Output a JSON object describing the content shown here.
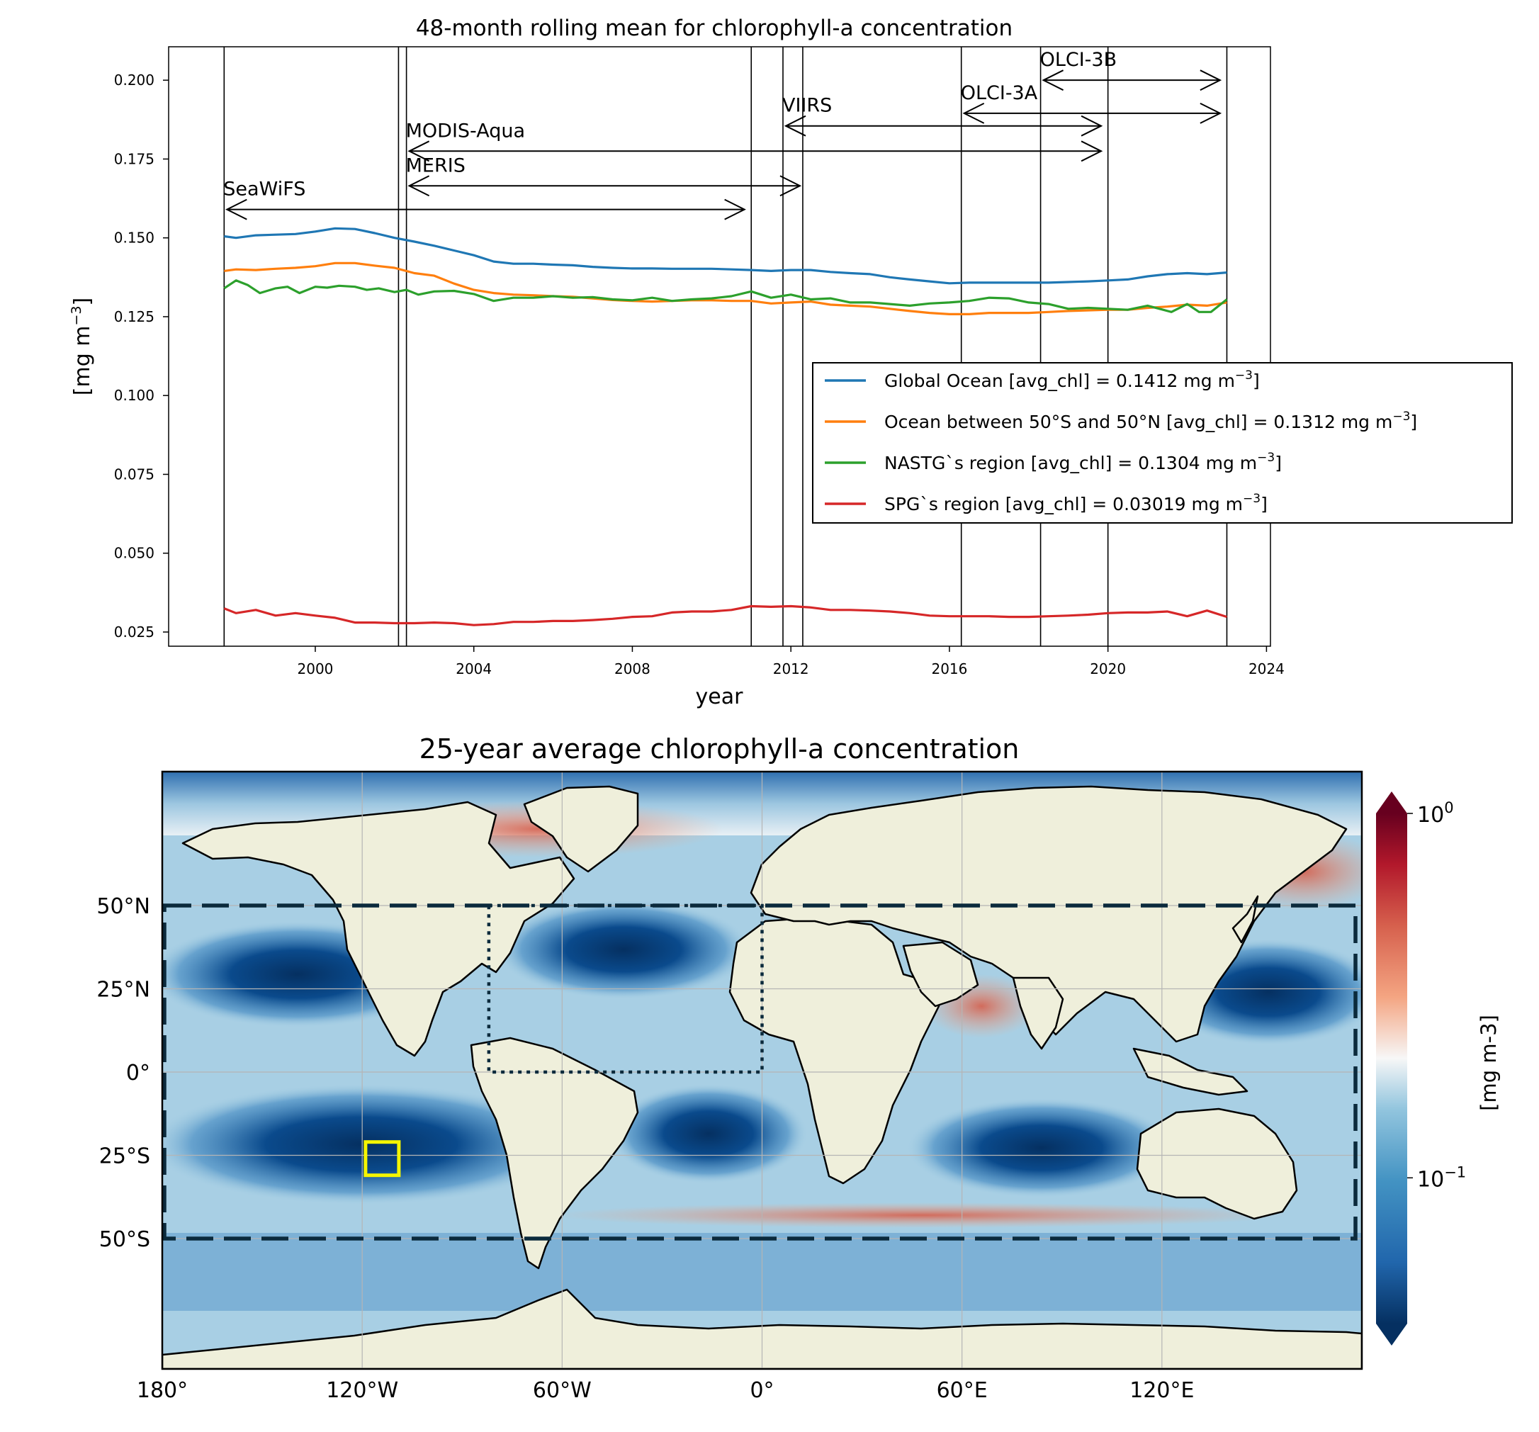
{
  "chart_data": [
    {
      "type": "line",
      "title": "48-month rolling mean for chlorophyll-a concentration",
      "xlabel": "year",
      "ylabel": "[mg m",
      "ylabel_exp": "−3",
      "ylabel_close": "]",
      "xlim": [
        1996.3,
        2024.1
      ],
      "ylim": [
        0.0205,
        0.2106
      ],
      "xticks": [
        2000,
        2004,
        2008,
        2012,
        2016,
        2020,
        2024
      ],
      "xtick_labels": [
        "2000",
        "2004",
        "2008",
        "2012",
        "2016",
        "2020",
        "2024"
      ],
      "yticks": [
        0.025,
        0.05,
        0.075,
        0.1,
        0.125,
        0.15,
        0.175,
        0.2
      ],
      "ytick_labels": [
        "0.025",
        "0.050",
        "0.075",
        "0.100",
        "0.125",
        "0.150",
        "0.175",
        "0.200"
      ],
      "grid": false,
      "legend_position": "center-right",
      "vertical_lines": [
        1997.7,
        2002.1,
        2002.3,
        2011.0,
        2011.8,
        2012.3,
        2016.3,
        2018.3,
        2020.0,
        2023.0
      ],
      "sensors": [
        {
          "name": "SeaWiFS",
          "start": 1997.7,
          "end": 2010.9,
          "y": 0.159
        },
        {
          "name": "MERIS",
          "start": 2002.3,
          "end": 2012.3,
          "y": 0.1665
        },
        {
          "name": "MODIS-Aqua",
          "start": 2002.3,
          "end": 2019.9,
          "y": 0.1775
        },
        {
          "name": "VIIRS",
          "start": 2011.8,
          "end": 2019.9,
          "y": 0.1855
        },
        {
          "name": "OLCI-3A",
          "start": 2016.3,
          "end": 2022.9,
          "y": 0.1895
        },
        {
          "name": "OLCI-3B",
          "start": 2018.3,
          "end": 2022.9,
          "y": 0.2
        }
      ],
      "series": [
        {
          "name": "Global Ocean [avg_chl] = 0.1412 mg m",
          "name_exp": "−3",
          "name_close": "]",
          "color": "#1f77b4",
          "x": [
            1997.7,
            1998.0,
            1998.5,
            1999.0,
            1999.5,
            2000.0,
            2000.5,
            2001.0,
            2001.5,
            2002.0,
            2002.5,
            2003.0,
            2003.5,
            2004.0,
            2004.5,
            2005.0,
            2005.5,
            2006.0,
            2006.5,
            2007.0,
            2007.5,
            2008.0,
            2008.5,
            2009.0,
            2009.5,
            2010.0,
            2010.5,
            2011.0,
            2011.5,
            2012.0,
            2012.5,
            2013.0,
            2013.5,
            2014.0,
            2014.5,
            2015.0,
            2015.5,
            2016.0,
            2016.5,
            2017.0,
            2017.5,
            2018.0,
            2018.5,
            2019.0,
            2019.5,
            2020.0,
            2020.5,
            2021.0,
            2021.5,
            2022.0,
            2022.5,
            2023.0
          ],
          "values": [
            0.1505,
            0.15,
            0.1508,
            0.151,
            0.1512,
            0.152,
            0.153,
            0.1528,
            0.1515,
            0.15,
            0.1488,
            0.1475,
            0.146,
            0.1445,
            0.1425,
            0.1418,
            0.1418,
            0.1415,
            0.1413,
            0.1408,
            0.1405,
            0.1403,
            0.1403,
            0.1402,
            0.1402,
            0.1402,
            0.14,
            0.1398,
            0.1395,
            0.1398,
            0.1398,
            0.1392,
            0.1388,
            0.1385,
            0.1375,
            0.1368,
            0.1362,
            0.1356,
            0.1358,
            0.1358,
            0.1358,
            0.1358,
            0.1358,
            0.136,
            0.1362,
            0.1365,
            0.1368,
            0.1378,
            0.1385,
            0.1388,
            0.1385,
            0.139
          ]
        },
        {
          "name": "Ocean between 50°S and 50°N [avg_chl] = 0.1312 mg m",
          "name_exp": "−3",
          "name_close": "]",
          "color": "#ff7f0e",
          "x": [
            1997.7,
            1998.0,
            1998.5,
            1999.0,
            1999.5,
            2000.0,
            2000.5,
            2001.0,
            2001.5,
            2002.0,
            2002.5,
            2003.0,
            2003.5,
            2004.0,
            2004.5,
            2005.0,
            2005.5,
            2006.0,
            2006.5,
            2007.0,
            2007.5,
            2008.0,
            2008.5,
            2009.0,
            2009.5,
            2010.0,
            2010.5,
            2011.0,
            2011.5,
            2012.0,
            2012.5,
            2013.0,
            2013.5,
            2014.0,
            2014.5,
            2015.0,
            2015.5,
            2016.0,
            2016.5,
            2017.0,
            2017.5,
            2018.0,
            2018.5,
            2019.0,
            2019.5,
            2020.0,
            2020.5,
            2021.0,
            2021.5,
            2022.0,
            2022.5,
            2023.0
          ],
          "values": [
            0.1395,
            0.14,
            0.1398,
            0.1402,
            0.1405,
            0.141,
            0.142,
            0.142,
            0.1412,
            0.1405,
            0.1388,
            0.138,
            0.1355,
            0.1335,
            0.1325,
            0.132,
            0.1318,
            0.1315,
            0.1313,
            0.1308,
            0.1303,
            0.13,
            0.1298,
            0.13,
            0.1302,
            0.1302,
            0.13,
            0.13,
            0.1292,
            0.1295,
            0.1298,
            0.1288,
            0.1285,
            0.1282,
            0.1275,
            0.1268,
            0.1262,
            0.1258,
            0.1258,
            0.1262,
            0.1262,
            0.1262,
            0.1265,
            0.1268,
            0.127,
            0.1272,
            0.1272,
            0.1278,
            0.1282,
            0.1288,
            0.1285,
            0.1295
          ]
        },
        {
          "name": "NASTG`s region [avg_chl] = 0.1304 mg m",
          "name_exp": "−3",
          "name_close": "]",
          "color": "#2ca02c",
          "x": [
            1997.7,
            1998.0,
            1998.3,
            1998.6,
            1999.0,
            1999.3,
            1999.6,
            2000.0,
            2000.3,
            2000.6,
            2001.0,
            2001.3,
            2001.6,
            2002.0,
            2002.3,
            2002.6,
            2003.0,
            2003.5,
            2004.0,
            2004.5,
            2005.0,
            2005.5,
            2006.0,
            2006.5,
            2007.0,
            2007.5,
            2008.0,
            2008.5,
            2009.0,
            2009.5,
            2010.0,
            2010.5,
            2011.0,
            2011.5,
            2012.0,
            2012.5,
            2013.0,
            2013.5,
            2014.0,
            2014.5,
            2015.0,
            2015.5,
            2016.0,
            2016.5,
            2017.0,
            2017.5,
            2018.0,
            2018.5,
            2019.0,
            2019.5,
            2020.0,
            2020.5,
            2021.0,
            2021.3,
            2021.6,
            2022.0,
            2022.3,
            2022.6,
            2023.0
          ],
          "values": [
            0.134,
            0.1365,
            0.135,
            0.1325,
            0.134,
            0.1345,
            0.1325,
            0.1345,
            0.1342,
            0.1348,
            0.1345,
            0.1335,
            0.134,
            0.1328,
            0.1335,
            0.132,
            0.133,
            0.1332,
            0.1322,
            0.13,
            0.131,
            0.131,
            0.1315,
            0.131,
            0.1312,
            0.1305,
            0.1302,
            0.131,
            0.13,
            0.1305,
            0.1308,
            0.1315,
            0.133,
            0.131,
            0.132,
            0.1305,
            0.1308,
            0.1295,
            0.1295,
            0.129,
            0.1285,
            0.1292,
            0.1295,
            0.13,
            0.131,
            0.1308,
            0.1295,
            0.129,
            0.1275,
            0.1278,
            0.1275,
            0.1272,
            0.1285,
            0.1275,
            0.1265,
            0.129,
            0.1265,
            0.1265,
            0.1305
          ]
        },
        {
          "name": "SPG`s region [avg_chl] = 0.03019 mg m",
          "name_exp": "−3",
          "name_close": "]",
          "color": "#d62728",
          "x": [
            1997.7,
            1998.0,
            1998.5,
            1999.0,
            1999.5,
            2000.0,
            2000.5,
            2001.0,
            2001.5,
            2002.0,
            2002.5,
            2003.0,
            2003.5,
            2004.0,
            2004.5,
            2005.0,
            2005.5,
            2006.0,
            2006.5,
            2007.0,
            2007.5,
            2008.0,
            2008.5,
            2009.0,
            2009.5,
            2010.0,
            2010.5,
            2011.0,
            2011.5,
            2012.0,
            2012.5,
            2013.0,
            2013.5,
            2014.0,
            2014.5,
            2015.0,
            2015.5,
            2016.0,
            2016.5,
            2017.0,
            2017.5,
            2018.0,
            2018.5,
            2019.0,
            2019.5,
            2020.0,
            2020.5,
            2021.0,
            2021.5,
            2022.0,
            2022.5,
            2023.0
          ],
          "values": [
            0.0325,
            0.031,
            0.032,
            0.0302,
            0.031,
            0.0302,
            0.0295,
            0.028,
            0.028,
            0.0278,
            0.0278,
            0.028,
            0.0278,
            0.0272,
            0.0275,
            0.0282,
            0.0282,
            0.0285,
            0.0285,
            0.0288,
            0.0292,
            0.0298,
            0.03,
            0.0312,
            0.0315,
            0.0315,
            0.032,
            0.0332,
            0.033,
            0.0332,
            0.0328,
            0.032,
            0.032,
            0.0318,
            0.0315,
            0.031,
            0.0302,
            0.03,
            0.03,
            0.03,
            0.0298,
            0.0298,
            0.03,
            0.0302,
            0.0305,
            0.031,
            0.0312,
            0.0312,
            0.0315,
            0.03,
            0.0318,
            0.0298
          ]
        }
      ]
    },
    {
      "type": "heatmap",
      "title": "25-year average chlorophyll-a concentration",
      "xtick_labels": [
        "180°",
        "120°W",
        "60°W",
        "0°",
        "60°E",
        "120°E"
      ],
      "ytick_labels": [
        "50°N",
        "25°N",
        "0°",
        "25°S",
        "50°S"
      ],
      "xticks_deg": [
        -180,
        -120,
        -60,
        0,
        60,
        120
      ],
      "yticks_deg": [
        50,
        25,
        0,
        -25,
        -50
      ],
      "colorbar_label": "[mg m-3]",
      "colorbar_scale": "log",
      "colorbar_ticks": [
        {
          "base": "10",
          "exp": "0",
          "value": 1.0
        },
        {
          "base": "10",
          "exp": "−1",
          "value": 0.1
        }
      ],
      "colormap": "RdBu_r",
      "land_color": "#efefdb",
      "boxes": [
        {
          "label": "",
          "style": "dashed",
          "color": "#0b2a3c",
          "lon": [
            -180,
            180
          ],
          "lat": [
            -50,
            50
          ]
        },
        {
          "label": "",
          "style": "dotted",
          "color": "#0b2a3c",
          "lon": [
            -82,
            0
          ],
          "lat": [
            0,
            50
          ]
        },
        {
          "label": "",
          "style": "solid",
          "color": "#f5f500",
          "lon": [
            -119,
            -109
          ],
          "lat": [
            -31,
            -21
          ]
        }
      ]
    }
  ]
}
